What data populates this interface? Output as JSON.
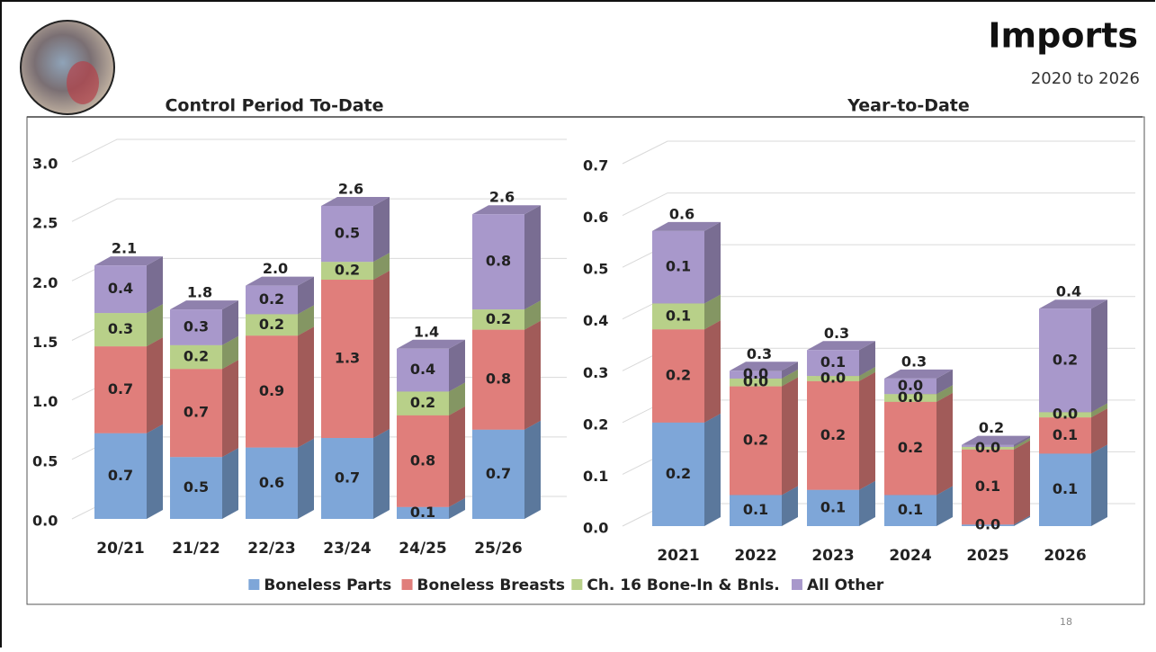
{
  "header": {
    "title": "Imports",
    "subtitle": "2020 to 2026"
  },
  "page_number": "18",
  "chart_data": [
    {
      "type": "bar3d-stacked",
      "title": "Control Period To-Date",
      "categories": [
        "20/21",
        "21/22",
        "22/23",
        "23/24",
        "24/25",
        "25/26"
      ],
      "series": [
        {
          "name": "Boneless Parts",
          "color": "#7ea6d8",
          "values": [
            0.72,
            0.52,
            0.6,
            0.68,
            0.1,
            0.75
          ],
          "value_labels": [
            "0.7",
            "0.5",
            "0.6",
            "0.7",
            "0.1",
            "0.7"
          ]
        },
        {
          "name": "Boneless Breasts",
          "color": "#e07e7b",
          "values": [
            0.73,
            0.74,
            0.94,
            1.33,
            0.77,
            0.84
          ],
          "value_labels": [
            "0.7",
            "0.7",
            "0.9",
            "1.3",
            "0.8",
            "0.8"
          ]
        },
        {
          "name": "Ch. 16 Bone-In & Bnls.",
          "color": "#b8d089",
          "values": [
            0.28,
            0.2,
            0.18,
            0.15,
            0.2,
            0.17
          ],
          "value_labels": [
            "0.3",
            "0.2",
            "0.2",
            "0.2",
            "0.2",
            "0.2"
          ]
        },
        {
          "name": "All Other",
          "color": "#a898cb",
          "values": [
            0.4,
            0.3,
            0.24,
            0.47,
            0.36,
            0.8
          ],
          "value_labels": [
            "0.4",
            "0.3",
            "0.2",
            "0.5",
            "0.4",
            "0.8"
          ]
        }
      ],
      "totals": [
        2.13,
        1.76,
        1.96,
        2.63,
        1.43,
        2.56
      ],
      "total_labels": [
        "2.1",
        "1.8",
        "2.0",
        "2.6",
        "1.4",
        "2.6"
      ],
      "ylim": [
        0,
        3
      ],
      "yticks": [
        {
          "value": 0,
          "label": "0.0"
        },
        0.5,
        {
          "value": 1,
          "label": "1.0"
        },
        1.5,
        {
          "value": 2,
          "label": "2.0"
        },
        2.5,
        {
          "value": 3,
          "label": "3.0"
        }
      ],
      "grid": true,
      "legend": "bottom"
    },
    {
      "type": "bar3d-stacked",
      "title": "Year-to-Date",
      "categories": [
        "2021",
        "2022",
        "2023",
        "2024",
        "2025",
        "2026"
      ],
      "series": [
        {
          "color": "#7ea6d8",
          "values": [
            0.2,
            0.06,
            0.07,
            0.06,
            0.003,
            0.14
          ],
          "value_labels": [
            "0.2",
            "0.1",
            "0.1",
            "0.1",
            "0.0",
            "0.1"
          ]
        },
        {
          "color": "#e07e7b",
          "values": [
            0.18,
            0.21,
            0.21,
            0.18,
            0.145,
            0.07
          ],
          "value_labels": [
            "0.2",
            "0.2",
            "0.2",
            "0.2",
            "0.1",
            "0.1"
          ]
        },
        {
          "color": "#b8d089",
          "values": [
            0.05,
            0.015,
            0.01,
            0.015,
            0.005,
            0.01
          ],
          "value_labels": [
            "0.1",
            "0.0",
            "0.0",
            "0.0",
            "0.0",
            "0.0"
          ]
        },
        {
          "color": "#a898cb",
          "values": [
            0.14,
            0.015,
            0.05,
            0.03,
            0.004,
            0.2
          ],
          "value_labels": [
            "0.1",
            "0.0",
            "0.1",
            "0.0",
            null,
            "0.2"
          ]
        }
      ],
      "totals": [
        0.57,
        0.3,
        0.34,
        0.285,
        0.157,
        0.42
      ],
      "total_labels": [
        "0.6",
        "0.3",
        "0.3",
        "0.3",
        "0.2",
        "0.4"
      ],
      "ylim": [
        0,
        0.7
      ],
      "yticks": [
        {
          "value": 0,
          "label": "0.0"
        },
        0.1,
        0.2,
        0.3,
        0.4,
        0.5,
        0.6,
        0.7
      ],
      "grid": true
    }
  ]
}
